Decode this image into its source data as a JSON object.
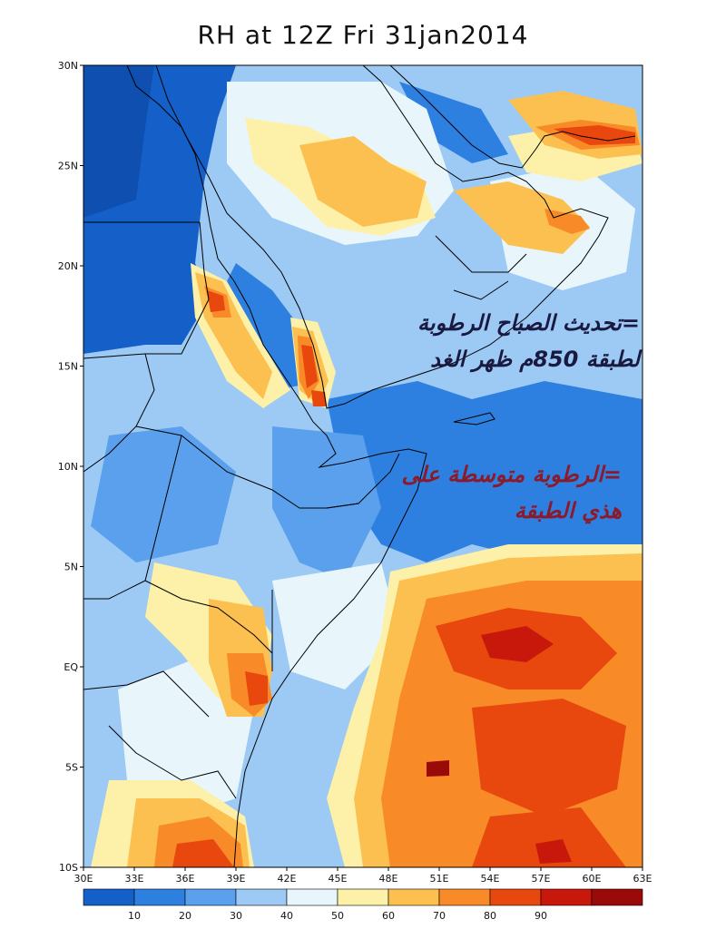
{
  "title": "RH at 12Z Fri 31jan2014",
  "map": {
    "lat_labels": [
      "30N",
      "25N",
      "20N",
      "15N",
      "10N",
      "5N",
      "EQ",
      "5S",
      "10S"
    ],
    "lon_labels": [
      "30E",
      "33E",
      "36E",
      "39E",
      "42E",
      "45E",
      "48E",
      "51E",
      "54E",
      "57E",
      "60E",
      "63E"
    ],
    "lat_range": [
      -10,
      30
    ],
    "lon_range": [
      30,
      63
    ],
    "variable": "RH",
    "level": "850"
  },
  "colorbar": {
    "labels": [
      "10",
      "20",
      "30",
      "40",
      "50",
      "60",
      "70",
      "80",
      "90"
    ],
    "colors": [
      "#1560c8",
      "#2e80e0",
      "#5aa0ec",
      "#9ccaf4",
      "#e8f6fb",
      "#fdf0a8",
      "#fcc050",
      "#f88a28",
      "#e8480e",
      "#c8180c",
      "#9a0a08"
    ]
  },
  "annotations": [
    {
      "lines": [
        "=تحديث الصباح الرطوبة",
        "لطبقة 850م ظهر الغد"
      ],
      "color": "#1a1a40"
    },
    {
      "lines": [
        "=الرطوبة متوسطة على",
        "هذي الطبقة"
      ],
      "color": "#8b1a2a"
    }
  ]
}
